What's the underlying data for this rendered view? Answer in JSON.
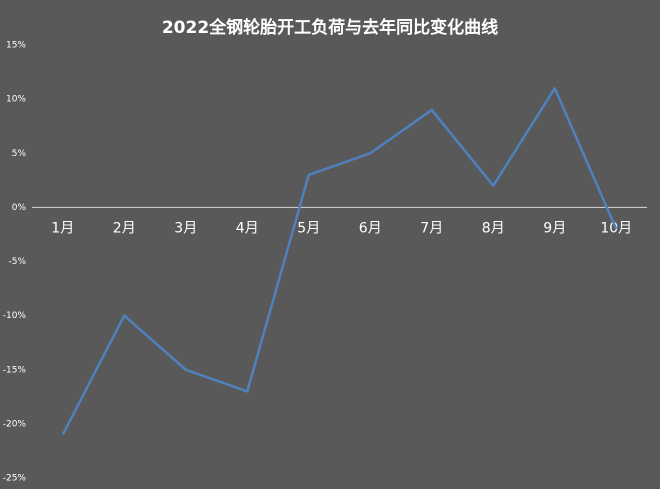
{
  "chart_data": {
    "type": "line",
    "title": "2022全钢轮胎开工负荷与去年同比变化曲线",
    "categories": [
      "1月",
      "2月",
      "3月",
      "4月",
      "5月",
      "6月",
      "7月",
      "8月",
      "9月",
      "10月"
    ],
    "values": [
      -21,
      -10,
      -15,
      -17,
      3,
      5,
      9,
      2,
      11,
      -2
    ],
    "color": "#4f81bd",
    "ylim": [
      -25,
      15
    ],
    "yticks": [
      {
        "value": -25,
        "label": "-25%"
      },
      {
        "value": -20,
        "label": "-20%"
      },
      {
        "value": -15,
        "label": "-15%"
      },
      {
        "value": -10,
        "label": "-10%"
      },
      {
        "value": -5,
        "label": "-5%"
      },
      {
        "value": 0,
        "label": "0%"
      },
      {
        "value": 5,
        "label": "5%"
      },
      {
        "value": 10,
        "label": "10%"
      },
      {
        "value": 15,
        "label": "15%"
      }
    ],
    "grid": false
  }
}
